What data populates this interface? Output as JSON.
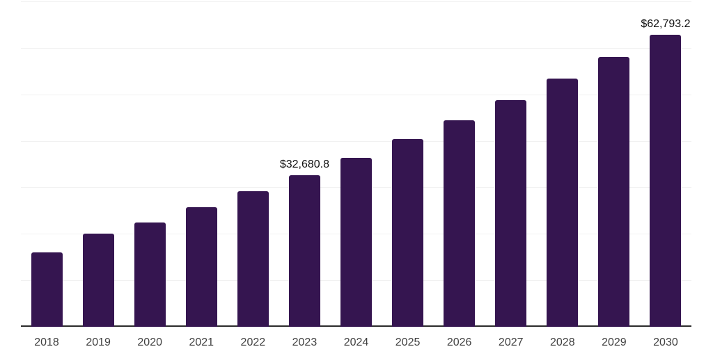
{
  "chart_data": {
    "type": "bar",
    "title": "",
    "xlabel": "",
    "ylabel": "",
    "categories": [
      "2018",
      "2019",
      "2020",
      "2021",
      "2022",
      "2023",
      "2024",
      "2025",
      "2026",
      "2027",
      "2028",
      "2029",
      "2030"
    ],
    "values": [
      16000,
      20000,
      22400,
      25700,
      29200,
      32680.8,
      36300,
      40400,
      44400,
      48700,
      53400,
      58000,
      62793.2
    ],
    "data_labels": {
      "2023": "$32,680.8",
      "2030": "$62,793.2"
    },
    "ylim": [
      0,
      70000
    ],
    "gridline_interval": 10000,
    "grid": true,
    "legend": "none",
    "y_axis_tick_labels_visible": false
  },
  "colors": {
    "background": "#ffffff",
    "bar": "#351550",
    "gridline": "#f1f1f1",
    "axis_line": "#2b2b2b",
    "tick_label": "#404040",
    "data_label": "#111111"
  }
}
